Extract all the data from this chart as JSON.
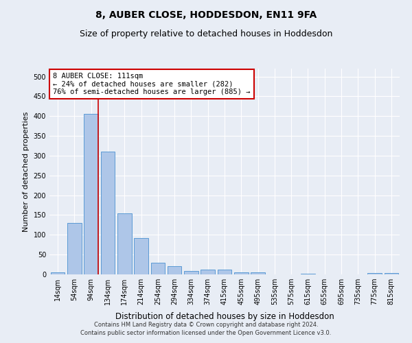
{
  "title": "8, AUBER CLOSE, HODDESDON, EN11 9FA",
  "subtitle": "Size of property relative to detached houses in Hoddesdon",
  "xlabel": "Distribution of detached houses by size in Hoddesdon",
  "ylabel": "Number of detached properties",
  "bar_labels": [
    "14sqm",
    "54sqm",
    "94sqm",
    "134sqm",
    "174sqm",
    "214sqm",
    "254sqm",
    "294sqm",
    "334sqm",
    "374sqm",
    "415sqm",
    "455sqm",
    "495sqm",
    "535sqm",
    "575sqm",
    "615sqm",
    "655sqm",
    "695sqm",
    "735sqm",
    "775sqm",
    "815sqm"
  ],
  "bar_values": [
    6,
    130,
    405,
    310,
    155,
    92,
    30,
    20,
    8,
    12,
    12,
    6,
    6,
    0,
    0,
    2,
    0,
    0,
    0,
    3,
    3
  ],
  "bar_color": "#aec6e8",
  "bar_edge_color": "#5b9bd5",
  "vline_color": "#cc0000",
  "vline_x": 2.42,
  "annotation_text": "8 AUBER CLOSE: 111sqm\n← 24% of detached houses are smaller (282)\n76% of semi-detached houses are larger (885) →",
  "annotation_box_color": "#ffffff",
  "annotation_box_edge": "#cc0000",
  "ylim": [
    0,
    520
  ],
  "yticks": [
    0,
    50,
    100,
    150,
    200,
    250,
    300,
    350,
    400,
    450,
    500
  ],
  "bg_color": "#e8edf5",
  "plot_bg_color": "#e8edf5",
  "footer": "Contains HM Land Registry data © Crown copyright and database right 2024.\nContains public sector information licensed under the Open Government Licence v3.0.",
  "title_fontsize": 10,
  "subtitle_fontsize": 9,
  "xlabel_fontsize": 8.5,
  "ylabel_fontsize": 8,
  "tick_fontsize": 7,
  "annotation_fontsize": 7.5,
  "footer_fontsize": 6
}
